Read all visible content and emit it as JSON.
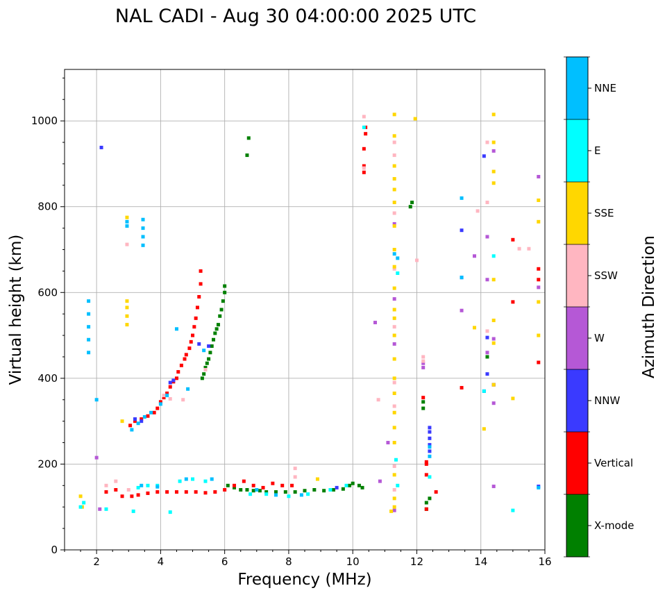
{
  "chart_data": {
    "type": "scatter",
    "title": "NAL CADI - Aug 30 04:00:00 2025 UTC",
    "xlabel": "Frequency (MHz)",
    "ylabel": "Virtual height (km)",
    "xlim": [
      1,
      16
    ],
    "ylim": [
      0,
      1120
    ],
    "xticks": [
      2,
      4,
      6,
      8,
      10,
      12,
      14,
      16
    ],
    "yticks": [
      0,
      200,
      400,
      600,
      800,
      1000
    ],
    "grid": true,
    "colorbar": {
      "label": "Azimuth Direction",
      "categories": [
        {
          "name": "X-mode",
          "color": "#008000"
        },
        {
          "name": "Vertical",
          "color": "#ff0000"
        },
        {
          "name": "NNW",
          "color": "#3a3aff"
        },
        {
          "name": "W",
          "color": "#b558d6"
        },
        {
          "name": "SSW",
          "color": "#ffb6c1"
        },
        {
          "name": "SSE",
          "color": "#ffd700"
        },
        {
          "name": "E",
          "color": "#00ffff"
        },
        {
          "name": "NNE",
          "color": "#00bfff"
        }
      ]
    },
    "series": [
      {
        "name": "X-mode",
        "points": [
          [
            5.3,
            400
          ],
          [
            5.35,
            410
          ],
          [
            5.4,
            425
          ],
          [
            5.45,
            435
          ],
          [
            5.5,
            445
          ],
          [
            5.55,
            460
          ],
          [
            5.6,
            475
          ],
          [
            5.65,
            490
          ],
          [
            5.7,
            505
          ],
          [
            5.75,
            515
          ],
          [
            5.8,
            525
          ],
          [
            5.85,
            545
          ],
          [
            5.9,
            560
          ],
          [
            5.95,
            580
          ],
          [
            6.0,
            600
          ],
          [
            6.0,
            615
          ],
          [
            6.7,
            920
          ],
          [
            6.75,
            960
          ],
          [
            6.1,
            150
          ],
          [
            6.3,
            145
          ],
          [
            6.5,
            140
          ],
          [
            6.7,
            140
          ],
          [
            6.9,
            138
          ],
          [
            7.1,
            138
          ],
          [
            7.3,
            135
          ],
          [
            7.6,
            135
          ],
          [
            7.9,
            135
          ],
          [
            8.2,
            135
          ],
          [
            8.5,
            138
          ],
          [
            8.8,
            140
          ],
          [
            9.1,
            138
          ],
          [
            9.4,
            140
          ],
          [
            9.7,
            142
          ],
          [
            9.9,
            150
          ],
          [
            10.0,
            155
          ],
          [
            10.2,
            150
          ],
          [
            10.3,
            145
          ],
          [
            11.8,
            800
          ],
          [
            11.85,
            810
          ],
          [
            12.2,
            330
          ],
          [
            12.2,
            345
          ],
          [
            12.3,
            95
          ],
          [
            12.3,
            110
          ],
          [
            12.4,
            120
          ],
          [
            14.2,
            450
          ]
        ]
      },
      {
        "name": "Vertical",
        "points": [
          [
            3.05,
            290
          ],
          [
            3.2,
            300
          ],
          [
            3.4,
            305
          ],
          [
            3.6,
            312
          ],
          [
            3.8,
            320
          ],
          [
            3.9,
            330
          ],
          [
            4.0,
            345
          ],
          [
            4.1,
            355
          ],
          [
            4.2,
            365
          ],
          [
            4.3,
            380
          ],
          [
            4.4,
            392
          ],
          [
            4.5,
            400
          ],
          [
            4.55,
            415
          ],
          [
            4.65,
            430
          ],
          [
            4.75,
            445
          ],
          [
            4.8,
            455
          ],
          [
            4.9,
            470
          ],
          [
            4.95,
            485
          ],
          [
            5.0,
            500
          ],
          [
            5.05,
            520
          ],
          [
            5.1,
            540
          ],
          [
            5.15,
            565
          ],
          [
            5.2,
            590
          ],
          [
            5.25,
            620
          ],
          [
            5.25,
            650
          ],
          [
            2.3,
            135
          ],
          [
            2.6,
            140
          ],
          [
            2.8,
            125
          ],
          [
            3.1,
            125
          ],
          [
            3.3,
            128
          ],
          [
            3.6,
            132
          ],
          [
            3.9,
            135
          ],
          [
            4.2,
            135
          ],
          [
            4.5,
            135
          ],
          [
            4.8,
            135
          ],
          [
            5.1,
            135
          ],
          [
            5.4,
            133
          ],
          [
            5.7,
            135
          ],
          [
            6.0,
            140
          ],
          [
            6.3,
            150
          ],
          [
            6.6,
            160
          ],
          [
            6.9,
            150
          ],
          [
            7.2,
            145
          ],
          [
            7.5,
            155
          ],
          [
            7.8,
            150
          ],
          [
            8.1,
            150
          ],
          [
            10.35,
            880
          ],
          [
            10.35,
            895
          ],
          [
            10.35,
            935
          ],
          [
            10.4,
            970
          ],
          [
            10.4,
            985
          ],
          [
            12.2,
            355
          ],
          [
            12.3,
            175
          ],
          [
            12.3,
            200
          ],
          [
            12.3,
            205
          ],
          [
            12.3,
            95
          ],
          [
            12.6,
            135
          ],
          [
            13.4,
            378
          ],
          [
            14.4,
            385
          ],
          [
            15.0,
            723
          ],
          [
            15.0,
            578
          ],
          [
            15.8,
            437
          ],
          [
            15.8,
            630
          ],
          [
            15.8,
            655
          ]
        ]
      },
      {
        "name": "NNW",
        "points": [
          [
            2.15,
            938
          ],
          [
            3.2,
            305
          ],
          [
            3.4,
            300
          ],
          [
            4.3,
            390
          ],
          [
            4.4,
            395
          ],
          [
            5.2,
            480
          ],
          [
            5.5,
            475
          ],
          [
            9.5,
            145
          ],
          [
            12.4,
            230
          ],
          [
            12.4,
            245
          ],
          [
            12.4,
            260
          ],
          [
            12.4,
            275
          ],
          [
            12.4,
            285
          ],
          [
            13.4,
            745
          ],
          [
            13.4,
            635
          ],
          [
            14.1,
            918
          ],
          [
            14.2,
            495
          ],
          [
            14.2,
            410
          ],
          [
            14.1,
            370
          ],
          [
            14.4,
            385
          ],
          [
            15.8,
            148
          ]
        ]
      },
      {
        "name": "W",
        "points": [
          [
            2.0,
            215
          ],
          [
            2.1,
            95
          ],
          [
            10.7,
            530
          ],
          [
            10.85,
            160
          ],
          [
            11.1,
            250
          ],
          [
            11.3,
            760
          ],
          [
            11.3,
            585
          ],
          [
            11.3,
            480
          ],
          [
            11.3,
            92
          ],
          [
            12.2,
            435
          ],
          [
            12.2,
            425
          ],
          [
            13.4,
            558
          ],
          [
            13.8,
            685
          ],
          [
            14.2,
            730
          ],
          [
            14.2,
            630
          ],
          [
            14.2,
            460
          ],
          [
            14.4,
            930
          ],
          [
            14.4,
            492
          ],
          [
            14.4,
            342
          ],
          [
            14.4,
            148
          ],
          [
            15.8,
            870
          ],
          [
            15.8,
            612
          ]
        ]
      },
      {
        "name": "SSW",
        "points": [
          [
            2.95,
            712
          ],
          [
            2.3,
            150
          ],
          [
            2.6,
            160
          ],
          [
            3.0,
            140
          ],
          [
            4.1,
            360
          ],
          [
            4.3,
            352
          ],
          [
            4.7,
            350
          ],
          [
            5.4,
            420
          ],
          [
            8.2,
            190
          ],
          [
            8.2,
            170
          ],
          [
            10.35,
            1010
          ],
          [
            10.35,
            890
          ],
          [
            10.8,
            350
          ],
          [
            11.3,
            950
          ],
          [
            11.3,
            920
          ],
          [
            11.3,
            785
          ],
          [
            11.3,
            655
          ],
          [
            11.3,
            520
          ],
          [
            11.3,
            390
          ],
          [
            11.3,
            335
          ],
          [
            11.3,
            195
          ],
          [
            11.3,
            140
          ],
          [
            12.0,
            675
          ],
          [
            12.2,
            450
          ],
          [
            12.2,
            440
          ],
          [
            14.2,
            950
          ],
          [
            14.2,
            810
          ],
          [
            14.2,
            510
          ],
          [
            13.9,
            790
          ],
          [
            15.2,
            702
          ],
          [
            15.5,
            702
          ]
        ]
      },
      {
        "name": "SSE",
        "points": [
          [
            1.5,
            125
          ],
          [
            1.55,
            100
          ],
          [
            2.95,
            525
          ],
          [
            2.95,
            545
          ],
          [
            2.95,
            565
          ],
          [
            2.95,
            580
          ],
          [
            2.95,
            775
          ],
          [
            2.8,
            300
          ],
          [
            8.9,
            165
          ],
          [
            11.3,
            1015
          ],
          [
            11.3,
            965
          ],
          [
            11.3,
            895
          ],
          [
            11.3,
            865
          ],
          [
            11.3,
            840
          ],
          [
            11.3,
            810
          ],
          [
            11.3,
            755
          ],
          [
            11.3,
            700
          ],
          [
            11.3,
            660
          ],
          [
            11.3,
            610
          ],
          [
            11.3,
            560
          ],
          [
            11.3,
            540
          ],
          [
            11.3,
            500
          ],
          [
            11.3,
            445
          ],
          [
            11.3,
            400
          ],
          [
            11.3,
            365
          ],
          [
            11.3,
            320
          ],
          [
            11.3,
            285
          ],
          [
            11.3,
            250
          ],
          [
            11.3,
            175
          ],
          [
            11.3,
            100
          ],
          [
            11.2,
            90
          ],
          [
            11.3,
            120
          ],
          [
            11.95,
            1005
          ],
          [
            13.8,
            518
          ],
          [
            14.4,
            1015
          ],
          [
            14.4,
            950
          ],
          [
            14.4,
            882
          ],
          [
            14.4,
            855
          ],
          [
            14.4,
            630
          ],
          [
            14.4,
            535
          ],
          [
            14.4,
            482
          ],
          [
            14.4,
            385
          ],
          [
            14.1,
            282
          ],
          [
            15.0,
            353
          ],
          [
            15.8,
            815
          ],
          [
            15.8,
            765
          ],
          [
            15.8,
            578
          ],
          [
            15.8,
            500
          ]
        ]
      },
      {
        "name": "E",
        "points": [
          [
            1.5,
            100
          ],
          [
            1.6,
            110
          ],
          [
            2.3,
            95
          ],
          [
            3.15,
            90
          ],
          [
            3.3,
            145
          ],
          [
            3.6,
            150
          ],
          [
            3.9,
            150
          ],
          [
            4.3,
            88
          ],
          [
            4.6,
            160
          ],
          [
            5.0,
            165
          ],
          [
            5.4,
            160
          ],
          [
            6.8,
            130
          ],
          [
            7.3,
            130
          ],
          [
            8.0,
            125
          ],
          [
            8.6,
            130
          ],
          [
            9.3,
            140
          ],
          [
            9.8,
            150
          ],
          [
            10.35,
            985
          ],
          [
            11.4,
            645
          ],
          [
            11.35,
            210
          ],
          [
            11.4,
            150
          ],
          [
            12.4,
            170
          ],
          [
            14.4,
            685
          ],
          [
            14.1,
            370
          ],
          [
            15.0,
            92
          ]
        ]
      },
      {
        "name": "NNE",
        "points": [
          [
            1.75,
            460
          ],
          [
            1.75,
            490
          ],
          [
            1.75,
            520
          ],
          [
            1.75,
            550
          ],
          [
            1.75,
            580
          ],
          [
            2.95,
            755
          ],
          [
            2.95,
            765
          ],
          [
            3.45,
            710
          ],
          [
            3.45,
            730
          ],
          [
            3.45,
            750
          ],
          [
            3.45,
            770
          ],
          [
            3.1,
            280
          ],
          [
            3.3,
            295
          ],
          [
            3.5,
            310
          ],
          [
            3.7,
            320
          ],
          [
            4.0,
            340
          ],
          [
            4.2,
            360
          ],
          [
            4.5,
            515
          ],
          [
            4.85,
            375
          ],
          [
            5.35,
            465
          ],
          [
            2.0,
            350
          ],
          [
            3.4,
            150
          ],
          [
            3.9,
            147
          ],
          [
            4.8,
            165
          ],
          [
            5.6,
            165
          ],
          [
            7.0,
            140
          ],
          [
            7.6,
            128
          ],
          [
            8.4,
            128
          ],
          [
            11.3,
            690
          ],
          [
            11.4,
            680
          ],
          [
            12.4,
            240
          ],
          [
            12.4,
            218
          ],
          [
            13.4,
            820
          ],
          [
            13.4,
            635
          ],
          [
            15.8,
            145
          ]
        ]
      }
    ]
  }
}
